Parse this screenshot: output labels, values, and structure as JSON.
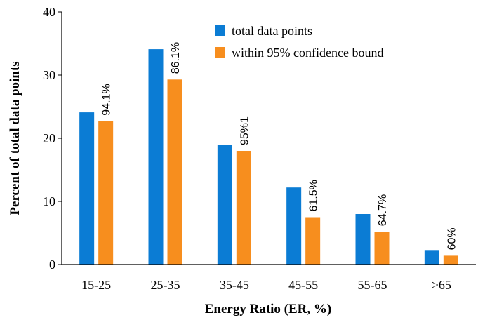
{
  "chart_data": {
    "type": "bar",
    "title": "",
    "xlabel": "Energy Ratio (ER, %)",
    "ylabel": "Percent of total data points",
    "categories": [
      "15-25",
      "25-35",
      "35-45",
      "45-55",
      "55-65",
      ">65"
    ],
    "series": [
      {
        "name": "total data points",
        "color": "#0B7CD4",
        "values": [
          24.1,
          34.1,
          18.9,
          12.2,
          8.0,
          2.3
        ]
      },
      {
        "name": "within 95% confidence bound",
        "color": "#F78E1E",
        "values": [
          22.7,
          29.3,
          18.0,
          7.5,
          5.2,
          1.4
        ]
      }
    ],
    "bar_labels": [
      "94.1%",
      "86.1%",
      "95%1",
      "61.5%",
      "64.7%",
      "60%"
    ],
    "ylim": [
      0,
      40
    ],
    "yticks": [
      0,
      10,
      20,
      30,
      40
    ],
    "grid": false,
    "legend_position": "top-right"
  }
}
